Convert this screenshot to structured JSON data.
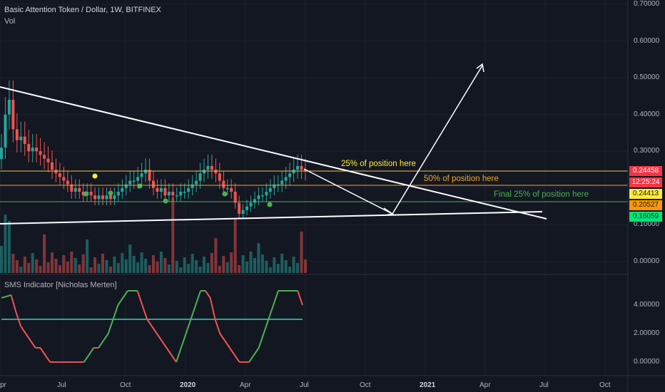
{
  "header": {
    "title": "Basic Attention Token / Dollar, 1W, BITFINEX",
    "vol_label": "Vol"
  },
  "indicator": {
    "title": "SMS Indicator [Nicholas Merten]"
  },
  "annotations": {
    "note_25": "25% of position here",
    "note_50": "50% of position here",
    "note_final": "Final 25% of position here"
  },
  "price_tags": [
    {
      "text": "0.24458",
      "bg": "#f23645",
      "fg": "#ffffff"
    },
    {
      "text": "12:25:24",
      "bg": "#f23645",
      "fg": "#ffffff"
    },
    {
      "text": "0.24413",
      "bg": "#ffeb3b",
      "fg": "#131722"
    },
    {
      "text": "0.20527",
      "bg": "#ff9800",
      "fg": "#131722"
    },
    {
      "text": "0.16059",
      "bg": "#00e676",
      "fg": "#131722"
    }
  ],
  "price_axis": [
    "0.70000",
    "0.60000",
    "0.50000",
    "0.40000",
    "0.30000",
    "0.10000",
    "0.00000"
  ],
  "indicator_axis": [
    "4.00000",
    "2.00000",
    "0.00000"
  ],
  "time_axis": [
    "pr",
    "Jul",
    "Oct",
    "2020",
    "Apr",
    "Jul",
    "Oct",
    "2021",
    "Apr",
    "Jul",
    "Oct"
  ],
  "colors": {
    "background": "#131722",
    "bull": "#26a69a",
    "bear": "#ef5350",
    "line_25": "#f5c24c",
    "line_50": "#f5a623",
    "line_final": "#4caf50",
    "trend": "#ffffff"
  },
  "chart_data": {
    "type": "candlestick",
    "levels": {
      "line_25": 0.24413,
      "line_50": 0.20527,
      "line_final": 0.16059,
      "last_price": 0.24458
    },
    "closes": [
      0.31,
      0.4,
      0.44,
      0.36,
      0.33,
      0.34,
      0.32,
      0.3,
      0.31,
      0.3,
      0.29,
      0.28,
      0.27,
      0.25,
      0.24,
      0.23,
      0.22,
      0.21,
      0.19,
      0.2,
      0.19,
      0.18,
      0.19,
      0.18,
      0.17,
      0.18,
      0.17,
      0.18,
      0.17,
      0.18,
      0.19,
      0.2,
      0.21,
      0.22,
      0.22,
      0.23,
      0.24,
      0.25,
      0.22,
      0.2,
      0.19,
      0.2,
      0.18,
      0.19,
      0.18,
      0.18,
      0.19,
      0.19,
      0.2,
      0.21,
      0.22,
      0.24,
      0.25,
      0.26,
      0.25,
      0.24,
      0.22,
      0.2,
      0.2,
      0.19,
      0.16,
      0.13,
      0.14,
      0.15,
      0.16,
      0.17,
      0.18,
      0.18,
      0.19,
      0.2,
      0.21,
      0.21,
      0.22,
      0.23,
      0.24,
      0.25,
      0.26,
      0.25,
      0.245
    ],
    "indicator_values": [
      4.5,
      4.6,
      4.7,
      3.5,
      2.5,
      2.0,
      1.5,
      1.0,
      1.0,
      0.5,
      0.0,
      0.0,
      0.0,
      0.0,
      0.0,
      0.0,
      0.0,
      0.0,
      0.5,
      1.0,
      1.0,
      1.5,
      2.0,
      3.0,
      4.0,
      4.5,
      5.0,
      5.0,
      5.0,
      4.0,
      3.0,
      2.5,
      2.0,
      1.5,
      1.0,
      0.5,
      0.0,
      1.0,
      2.0,
      3.0,
      4.0,
      5.0,
      5.0,
      4.5,
      3.0,
      2.0,
      1.5,
      1.0,
      0.5,
      0.0,
      0.0,
      0.0,
      0.5,
      1.0,
      2.0,
      3.0,
      4.0,
      5.0,
      5.0,
      5.0,
      5.0,
      5.0,
      4.0
    ],
    "indicator_level": 3.0
  }
}
